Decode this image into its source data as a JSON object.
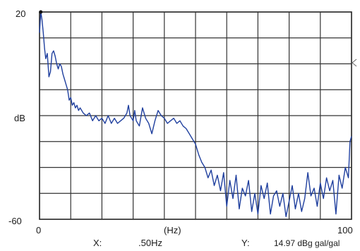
{
  "chart_data": {
    "type": "line",
    "title": "",
    "xlabel": "(Hz)",
    "ylabel": "dB",
    "xlim": [
      0,
      100
    ],
    "ylim": [
      -60,
      20
    ],
    "x_tick_labels": [
      "0",
      "100"
    ],
    "y_tick_labels": [
      "20",
      "-60"
    ],
    "grid": true,
    "x_grid_divisions": 10,
    "y_grid_divisions": 8,
    "line_color": "#1f3f9e",
    "series": [
      {
        "values": [
          [
            0,
            12
          ],
          [
            0.4,
            20
          ],
          [
            0.8,
            17
          ],
          [
            1.2,
            12
          ],
          [
            1.6,
            6
          ],
          [
            2,
            2
          ],
          [
            2.5,
            4
          ],
          [
            3,
            -5
          ],
          [
            3.5,
            -3
          ],
          [
            4,
            4
          ],
          [
            4.5,
            5
          ],
          [
            5,
            3
          ],
          [
            5.5,
            0
          ],
          [
            6,
            -2
          ],
          [
            6.5,
            0
          ],
          [
            7,
            -1
          ],
          [
            7.5,
            -4
          ],
          [
            8,
            -6
          ],
          [
            8.5,
            -8
          ],
          [
            9,
            -10
          ],
          [
            9.5,
            -14
          ],
          [
            10,
            -13
          ],
          [
            10.5,
            -16
          ],
          [
            11,
            -15
          ],
          [
            11.5,
            -17
          ],
          [
            12,
            -16
          ],
          [
            12.5,
            -18
          ],
          [
            13,
            -17
          ],
          [
            14,
            -19
          ],
          [
            15,
            -20
          ],
          [
            16,
            -19
          ],
          [
            17,
            -22
          ],
          [
            18,
            -20
          ],
          [
            19,
            -22
          ],
          [
            20,
            -21
          ],
          [
            21,
            -23
          ],
          [
            22,
            -20
          ],
          [
            23,
            -23
          ],
          [
            24,
            -21
          ],
          [
            25,
            -23
          ],
          [
            26,
            -22
          ],
          [
            27,
            -21
          ],
          [
            28,
            -19
          ],
          [
            28.5,
            -16
          ],
          [
            29,
            -20
          ],
          [
            30,
            -22
          ],
          [
            30.5,
            -18
          ],
          [
            31,
            -22
          ],
          [
            32,
            -24
          ],
          [
            33,
            -17
          ],
          [
            34,
            -21
          ],
          [
            35,
            -23
          ],
          [
            36,
            -27
          ],
          [
            37,
            -22
          ],
          [
            38,
            -18
          ],
          [
            39,
            -20
          ],
          [
            40,
            -21
          ],
          [
            41,
            -23
          ],
          [
            42,
            -22
          ],
          [
            43,
            -21
          ],
          [
            44,
            -23
          ],
          [
            45,
            -22
          ],
          [
            46,
            -24
          ],
          [
            47,
            -25
          ],
          [
            48,
            -27
          ],
          [
            49,
            -29
          ],
          [
            50,
            -31
          ],
          [
            51,
            -35
          ],
          [
            52,
            -38
          ],
          [
            53,
            -40
          ],
          [
            54,
            -44
          ],
          [
            55,
            -41
          ],
          [
            56,
            -47
          ],
          [
            57,
            -43
          ],
          [
            58,
            -49
          ],
          [
            59,
            -42
          ],
          [
            60,
            -55
          ],
          [
            61,
            -45
          ],
          [
            62,
            -52
          ],
          [
            63,
            -43
          ],
          [
            64,
            -56
          ],
          [
            65,
            -48
          ],
          [
            66,
            -51
          ],
          [
            67,
            -45
          ],
          [
            68,
            -57
          ],
          [
            69,
            -50
          ],
          [
            70,
            -58
          ],
          [
            71,
            -47
          ],
          [
            72,
            -52
          ],
          [
            73,
            -46
          ],
          [
            74,
            -58
          ],
          [
            75,
            -51
          ],
          [
            76,
            -49
          ],
          [
            77,
            -55
          ],
          [
            78,
            -50
          ],
          [
            79,
            -59
          ],
          [
            80,
            -53
          ],
          [
            81,
            -47
          ],
          [
            82,
            -56
          ],
          [
            83,
            -50
          ],
          [
            84,
            -57
          ],
          [
            85,
            -52
          ],
          [
            86,
            -42
          ],
          [
            87,
            -51
          ],
          [
            88,
            -48
          ],
          [
            89,
            -55
          ],
          [
            90,
            -46
          ],
          [
            91,
            -52
          ],
          [
            92,
            -44
          ],
          [
            93,
            -49
          ],
          [
            94,
            -45
          ],
          [
            95,
            -58
          ],
          [
            96,
            -43
          ],
          [
            97,
            -48
          ],
          [
            98,
            -40
          ],
          [
            99,
            -44
          ],
          [
            99.5,
            -30
          ],
          [
            100,
            -28
          ]
        ]
      }
    ]
  },
  "readout": {
    "x_label": "X:",
    "x_value": ".50Hz",
    "y_label": "Y:",
    "y_value": "14.97 dBg gal/gal"
  }
}
